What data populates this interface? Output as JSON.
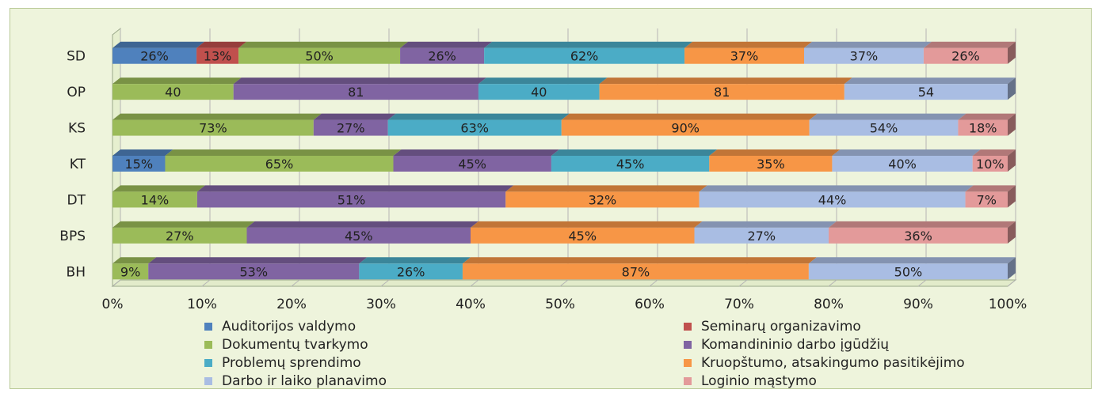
{
  "chart_data": {
    "type": "bar",
    "stacked": "100%",
    "orientation": "horizontal",
    "categories": [
      "SD",
      "OP",
      "KS",
      "KT",
      "DT",
      "BPS",
      "BH"
    ],
    "x_tick_labels": [
      "0%",
      "10%",
      "20%",
      "30%",
      "40%",
      "50%",
      "60%",
      "70%",
      "80%",
      "90%",
      "100%"
    ],
    "xlim": [
      0,
      100
    ],
    "legend_position": "bottom",
    "series": [
      {
        "name": "Auditorijos valdymo",
        "color": "#4f81bd",
        "values": [
          26,
          null,
          null,
          15,
          null,
          null,
          null
        ],
        "labels": [
          "26%",
          "",
          "",
          "15%",
          "",
          "",
          ""
        ]
      },
      {
        "name": "Seminarų organizavimo",
        "color": "#c0504d",
        "values": [
          13,
          null,
          null,
          null,
          null,
          null,
          null
        ],
        "labels": [
          "13%",
          "",
          "",
          "",
          "",
          "",
          ""
        ]
      },
      {
        "name": "Dokumentų tvarkymo",
        "color": "#9bbb59",
        "values": [
          50,
          40,
          73,
          65,
          14,
          27,
          9
        ],
        "labels": [
          "50%",
          "40",
          "73%",
          "65%",
          "14%",
          "27%",
          "9%"
        ]
      },
      {
        "name": "Komandininio darbo įgūdžių",
        "color": "#8064a2",
        "values": [
          26,
          81,
          27,
          45,
          51,
          45,
          53
        ],
        "labels": [
          "26%",
          "81",
          "27%",
          "45%",
          "51%",
          "45%",
          "53%"
        ]
      },
      {
        "name": "Problemų sprendimo",
        "color": "#4bacc6",
        "values": [
          62,
          40,
          63,
          45,
          null,
          null,
          26
        ],
        "labels": [
          "62%",
          "40",
          "63%",
          "45%",
          "",
          "",
          "26%"
        ]
      },
      {
        "name": "Kruopštumo, atsakingumo pasitikėjimo",
        "color": "#f79646",
        "values": [
          37,
          81,
          90,
          35,
          32,
          45,
          87
        ],
        "labels": [
          "37%",
          "81",
          "90%",
          "35%",
          "32%",
          "45%",
          "87%"
        ]
      },
      {
        "name": "Darbo ir laiko planavimo",
        "color": "#a9bde3",
        "values": [
          37,
          54,
          54,
          40,
          44,
          27,
          50
        ],
        "labels": [
          "37%",
          "54",
          "54%",
          "40%",
          "44%",
          "27%",
          "50%"
        ]
      },
      {
        "name": "Loginio mąstymo",
        "color": "#e39a9a",
        "values": [
          26,
          null,
          18,
          10,
          7,
          36,
          null
        ],
        "labels": [
          "26%",
          "",
          "18%",
          "10%",
          "7%",
          "36%",
          ""
        ]
      }
    ]
  }
}
